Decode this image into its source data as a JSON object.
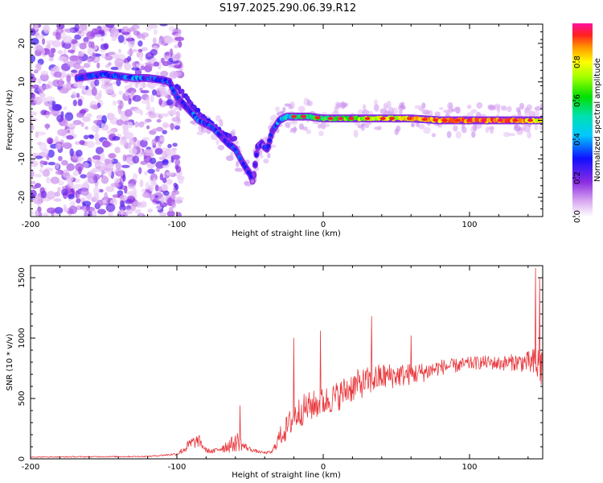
{
  "title": "S197.2025.290.06.39.R12",
  "chart_data": [
    {
      "type": "heatmap",
      "xlabel": "Height of straight line (km)",
      "ylabel": "Frequency (Hz)",
      "xlim": [
        -200,
        150
      ],
      "ylim": [
        -25,
        25
      ],
      "x_ticks": [
        -200,
        -100,
        0,
        100
      ],
      "y_ticks": [
        -20,
        -10,
        0,
        10,
        20
      ],
      "colorbar": {
        "label": "Normalized spectral amplitude",
        "ticks": [
          "0.0",
          "0.2",
          "0.4",
          "0.6",
          "0.8"
        ],
        "range": [
          0,
          1
        ],
        "colormap": "rainbow (magenta-blue-cyan-green-yellow-red)"
      },
      "ridge": {
        "description": "main spectral ridge (frequency in Hz vs height in km)",
        "x": [
          -168,
          -160,
          -150,
          -140,
          -130,
          -120,
          -110,
          -105,
          -100,
          -95,
          -90,
          -85,
          -80,
          -75,
          -70,
          -65,
          -60,
          -55,
          -50,
          -48,
          -45,
          -42,
          -40,
          -38,
          -35,
          -30,
          -25,
          -20,
          -10,
          0,
          20,
          40,
          60,
          80,
          100,
          120,
          140,
          150
        ],
        "y": [
          11,
          11.5,
          12,
          11.5,
          11,
          11,
          10.5,
          10,
          6,
          4,
          2,
          0,
          -1,
          -2,
          -4,
          -6,
          -7.5,
          -11,
          -14,
          -16,
          -7,
          -6,
          -7,
          -7.5,
          -3,
          0,
          1,
          1,
          1,
          0.5,
          0.5,
          0.5,
          0.5,
          0,
          0,
          0,
          0,
          0
        ],
        "amplitude": [
          0.25,
          0.3,
          0.3,
          0.3,
          0.35,
          0.3,
          0.3,
          0.3,
          0.25,
          0.3,
          0.3,
          0.35,
          0.3,
          0.3,
          0.3,
          0.25,
          0.3,
          0.25,
          0.2,
          0.2,
          0.2,
          0.2,
          0.25,
          0.25,
          0.3,
          0.35,
          0.45,
          0.5,
          0.55,
          0.6,
          0.7,
          0.75,
          0.8,
          0.85,
          0.9,
          0.9,
          0.85,
          0.8
        ]
      },
      "secondary_branch": {
        "x": [
          -100,
          -90,
          -80,
          -70,
          -60
        ],
        "y": [
          9,
          4,
          0,
          -3,
          -5
        ]
      },
      "noise_region_x": [
        -200,
        -105
      ]
    },
    {
      "type": "line",
      "xlabel": "Height of straight line (km)",
      "ylabel": "SNR (10 * v/v)",
      "xlim": [
        -200,
        150
      ],
      "ylim": [
        0,
        1600
      ],
      "x_ticks": [
        -200,
        -100,
        0,
        100
      ],
      "y_ticks": [
        0,
        500,
        1000,
        1500
      ],
      "series": [
        {
          "color": "#e8383d",
          "envelope_x": [
            -200,
            -120,
            -100,
            -95,
            -90,
            -85,
            -80,
            -75,
            -70,
            -65,
            -60,
            -58,
            -55,
            -50,
            -45,
            -40,
            -35,
            -30,
            -25,
            -20,
            -15,
            -10,
            0,
            10,
            20,
            30,
            40,
            50,
            60,
            70,
            80,
            90,
            100,
            110,
            120,
            130,
            140,
            145,
            150
          ],
          "mean": [
            15,
            20,
            40,
            80,
            130,
            150,
            70,
            60,
            90,
            110,
            130,
            150,
            110,
            80,
            60,
            50,
            55,
            180,
            250,
            350,
            400,
            430,
            470,
            520,
            600,
            640,
            680,
            690,
            700,
            720,
            760,
            770,
            790,
            800,
            790,
            800,
            800,
            780,
            760
          ],
          "spread": [
            8,
            10,
            20,
            70,
            110,
            100,
            40,
            40,
            80,
            120,
            140,
            180,
            80,
            40,
            25,
            20,
            30,
            150,
            220,
            250,
            260,
            250,
            240,
            250,
            260,
            240,
            230,
            200,
            180,
            160,
            130,
            120,
            110,
            110,
            120,
            140,
            180,
            300,
            400
          ],
          "peaks": [
            {
              "x": -57,
              "y": 440
            },
            {
              "x": -20,
              "y": 1000
            },
            {
              "x": -2,
              "y": 1060
            },
            {
              "x": 33,
              "y": 1180
            },
            {
              "x": 60,
              "y": 1020
            },
            {
              "x": 145,
              "y": 1580
            },
            {
              "x": 148,
              "y": 1500
            }
          ]
        }
      ]
    }
  ]
}
